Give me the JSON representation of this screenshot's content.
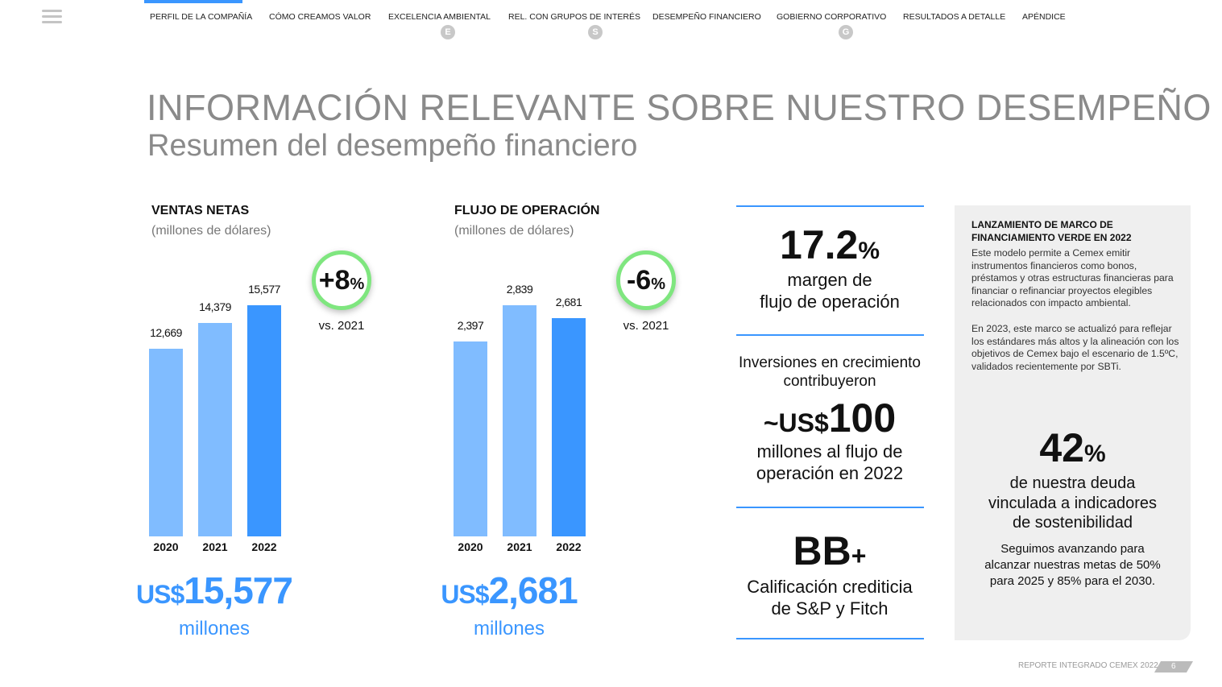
{
  "nav": {
    "items": [
      "PERFIL DE LA COMPAÑÍA",
      "CÓMO CREAMOS VALOR",
      "EXCELENCIA AMBIENTAL",
      "REL. CON GRUPOS DE INTERÉS",
      "DESEMPEÑO FINANCIERO",
      "GOBIERNO CORPORATIVO",
      "RESULTADOS A DETALLE",
      "APÉNDICE"
    ],
    "badges": [
      "E",
      "S",
      "G"
    ],
    "active": 0
  },
  "header": {
    "title": "INFORMACIÓN RELEVANTE SOBRE NUESTRO DESEMPEÑO",
    "subtitle": "Resumen del desempeño financiero"
  },
  "chart_data": [
    {
      "type": "bar",
      "title": "VENTAS NETAS",
      "unit": "(millones de dólares)",
      "categories": [
        "2020",
        "2021",
        "2022"
      ],
      "values": [
        12669,
        14379,
        15577
      ],
      "labels": [
        "12,669",
        "14,379",
        "15,577"
      ],
      "change": "+8",
      "change_suffix": "%",
      "vs": "vs. 2021",
      "total_prefix": "US$",
      "total": "15,577",
      "total_unit": "millones"
    },
    {
      "type": "bar",
      "title": "FLUJO DE OPERACIÓN",
      "unit": "(millones de dólares)",
      "categories": [
        "2020",
        "2021",
        "2022"
      ],
      "values": [
        2397,
        2839,
        2681
      ],
      "labels": [
        "2,397",
        "2,839",
        "2,681"
      ],
      "change": "-6",
      "change_suffix": "%",
      "vs": "vs. 2021",
      "total_prefix": "US$",
      "total": "2,681",
      "total_unit": "millones"
    }
  ],
  "colors": {
    "bar_light": "#80bcff",
    "bar_dark": "#3a96ff",
    "accent": "#3a96ff",
    "ring": "#7fe67f"
  },
  "kpis": {
    "margin": {
      "value": "17.2",
      "suffix": "%",
      "line1": "margen de",
      "line2": "flujo de operación"
    },
    "invest": {
      "intro1": "Inversiones en crecimiento",
      "intro2": "contribuyeron",
      "prefix": "~US$",
      "value": "100",
      "line1": "millones al flujo de",
      "line2": "operación en 2022"
    },
    "rating": {
      "value": "BB",
      "suffix": "+",
      "line1": "Calificación crediticia",
      "line2": "de S&P y Fitch"
    }
  },
  "panel": {
    "title": "LANZAMIENTO DE MARCO DE FINANCIAMIENTO VERDE EN 2022",
    "p1": "Este modelo permite a Cemex emitir instrumentos financieros como bonos, préstamos y otras estructuras financieras para financiar o refinanciar proyectos elegibles relacionados con impacto ambiental.",
    "p2": "En 2023, este marco se actualizó para reflejar los estándares más altos y la alineación con los objetivos de Cemex bajo el escenario de 1.5ºC, validados recientemente por SBTi.",
    "stat": "42",
    "stat_suffix": "%",
    "stat1": "de nuestra deuda",
    "stat2": "vinculada a indicadores",
    "stat3": "de sostenibilidad",
    "note": "Seguimos avanzando para alcanzar nuestras metas de 50% para 2025 y 85% para el 2030."
  },
  "footer": {
    "text": "REPORTE INTEGRADO CEMEX 2022",
    "page": "6"
  }
}
